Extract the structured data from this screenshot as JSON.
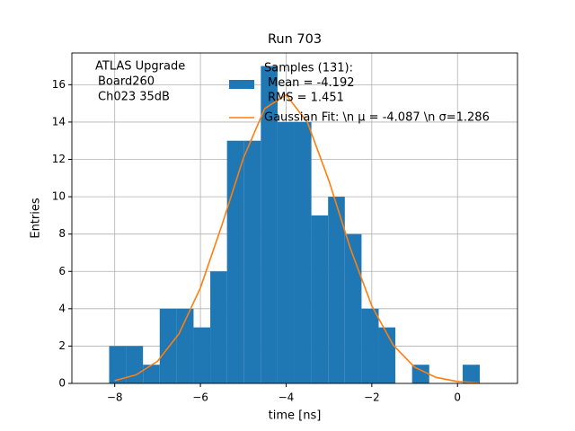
{
  "chart_data": {
    "type": "histogram",
    "title": "Run 703",
    "xlabel": "time [ns]",
    "ylabel": "Entries",
    "annotation": [
      "ATLAS Upgrade",
      "Board260",
      "Ch023 35dB"
    ],
    "xlim": [
      -9,
      1.4
    ],
    "ylim": [
      0,
      17.7
    ],
    "xticks": [
      {
        "value": -8,
        "label": "−8"
      },
      {
        "value": -6,
        "label": "−6"
      },
      {
        "value": -4,
        "label": "−4"
      },
      {
        "value": -2,
        "label": "−2"
      },
      0
    ],
    "yticks": [
      0,
      2,
      4,
      6,
      8,
      10,
      12,
      14,
      16
    ],
    "grid": true,
    "series": [
      {
        "name": [
          "Samples (131):",
          "Mean = -4.192",
          "RMS = 1.451"
        ],
        "color": "#1f77b4",
        "bins": [
          -8.13,
          -7.74,
          -7.34,
          -6.95,
          -6.56,
          -6.16,
          -5.77,
          -5.38,
          -4.99,
          -4.59,
          -4.2,
          -3.81,
          -3.41,
          -3.02,
          -2.63,
          -2.24,
          -1.84,
          -1.45,
          -1.06,
          -0.66,
          -0.27,
          0.12,
          0.52
        ],
        "values": [
          2,
          2,
          1,
          4,
          4,
          3,
          6,
          13,
          13,
          17,
          14,
          14,
          9,
          10,
          8,
          4,
          3,
          0,
          1,
          0,
          0,
          1
        ]
      },
      {
        "name": "Gaussian Fit: \\n μ = -4.087 \\n σ=1.286",
        "color": "#ff7f0e",
        "x": [
          -8,
          -7.5,
          -7,
          -6.5,
          -6,
          -5.5,
          -5,
          -4.5,
          -4,
          -3.5,
          -3,
          -2.5,
          -2,
          -1.5,
          -1,
          -0.5,
          0,
          0.5
        ],
        "values": [
          0.15,
          0.46,
          1.19,
          2.66,
          5.12,
          8.47,
          12.05,
          14.72,
          15.46,
          13.97,
          10.85,
          7.23,
          4.15,
          2.05,
          0.87,
          0.32,
          0.1,
          0.03
        ]
      }
    ]
  }
}
